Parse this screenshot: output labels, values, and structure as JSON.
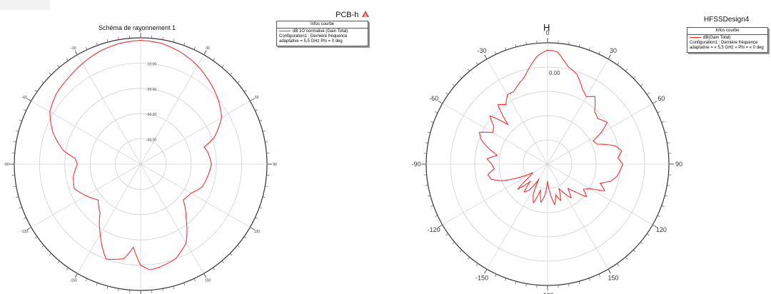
{
  "chart_data": [
    {
      "type": "polar-line",
      "title": "Schéma de rayonnement 1",
      "project_label": "PCB-h",
      "logo_text": "ANSOFT",
      "legend": {
        "header": "Infos courbe",
        "series_label": "dB 1O normalisé (Gain Total)",
        "setup_lines": [
          "Configuration1 : Dernière fréquence",
          "adaptative = 5,5 GHz Phi = 0 deg"
        ]
      },
      "angle_ticks": [
        "0",
        "30",
        "60",
        "90",
        "120",
        "150",
        "-180",
        "-150",
        "-120",
        "-90",
        "-60",
        "-30"
      ],
      "radial_ticks": [
        "-10.00",
        "-20.00",
        "-30.00",
        "-40.00"
      ],
      "r_range_db": [
        -50,
        0
      ],
      "grid": true,
      "series": [
        {
          "color": "#ee3333",
          "theta_deg": [
            0,
            10,
            20,
            30,
            40,
            50,
            60,
            70,
            75,
            80,
            90,
            100,
            110,
            120,
            130,
            140,
            150,
            160,
            170,
            175,
            180,
            185,
            190,
            200,
            210,
            220,
            230,
            240,
            250,
            260,
            270,
            275,
            280,
            290,
            300,
            310,
            320,
            330,
            340,
            350
          ],
          "gain_db": [
            -1,
            -1.5,
            -3,
            -5,
            -7.5,
            -10,
            -13,
            -19,
            -24,
            -23,
            -22,
            -23,
            -24,
            -27,
            -28,
            -22,
            -14,
            -10,
            -8.5,
            -8,
            -10,
            -17,
            -12,
            -10,
            -18,
            -25,
            -28,
            -25,
            -22,
            -23,
            -25,
            -24,
            -19,
            -13,
            -8.5,
            -6.5,
            -5.5,
            -4,
            -2.5,
            -1.5
          ]
        }
      ]
    },
    {
      "type": "polar-line",
      "title": "H",
      "project_label": "HFSSDesign4",
      "legend": {
        "header": "Infos courbe",
        "series_label": "dB(Gain Total)",
        "setup_lines": [
          "Configuration1 : Dernière fréquence",
          "adaptative = « 5,5 GHz » Phi = « 0 deg"
        ]
      },
      "angle_ticks": [
        "0",
        "30",
        "60",
        "90",
        "120",
        "150",
        "-180",
        "-150",
        "-120",
        "-90",
        "-60",
        "-30"
      ],
      "radial_ticks": [
        "0.00"
      ],
      "r_range_db": [
        -40,
        10
      ],
      "grid": true,
      "series": [
        {
          "color": "#ee3333",
          "theta_deg": [
            0,
            5,
            8,
            12,
            18,
            25,
            30,
            35,
            42,
            48,
            55,
            60,
            63,
            68,
            75,
            80,
            85,
            90,
            95,
            100,
            105,
            110,
            115,
            120,
            125,
            130,
            135,
            140,
            145,
            150,
            155,
            160,
            165,
            170,
            175,
            180,
            185,
            190,
            195,
            200,
            205,
            210,
            215,
            220,
            225,
            230,
            235,
            240,
            245,
            250,
            255,
            260,
            265,
            270,
            275,
            280,
            285,
            290,
            295,
            300,
            305,
            310,
            315,
            320,
            325,
            330,
            335,
            340,
            345,
            350,
            355
          ],
          "gain_db": [
            7,
            6.5,
            4,
            1,
            -1,
            -6,
            -8,
            -6,
            -11,
            -12,
            -10,
            -15,
            -19,
            -18,
            -11,
            -9,
            -11,
            -9,
            -10,
            -11,
            -13,
            -17,
            -14,
            -20,
            -22,
            -19,
            -24,
            -27,
            -23,
            -26,
            -29,
            -24,
            -27,
            -23,
            -28,
            -33,
            -27,
            -24,
            -29,
            -23,
            -26,
            -33,
            -27,
            -25,
            -30,
            -24,
            -31,
            -33,
            -27,
            -20,
            -16,
            -15,
            -18,
            -17,
            -15,
            -19,
            -15,
            -11,
            -9,
            -14,
            -13,
            -9,
            -17,
            -8,
            -10,
            -7,
            -7,
            -5,
            -3,
            1,
            5
          ]
        }
      ]
    }
  ]
}
